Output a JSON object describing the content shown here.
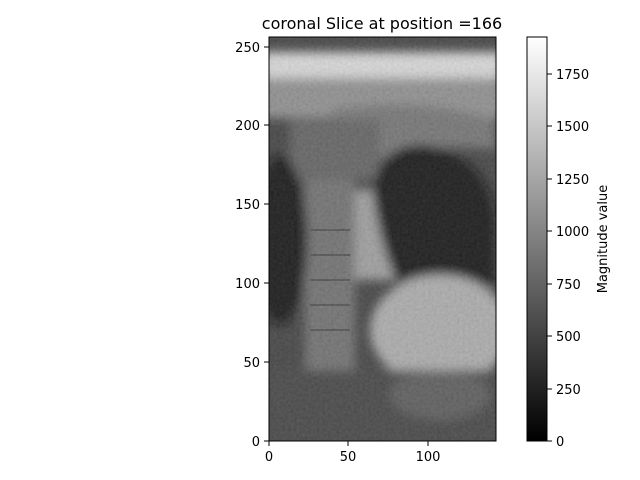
{
  "title": "coronal Slice at position =166",
  "image_axes": {
    "x_ticks": [
      "0",
      "50",
      "100"
    ],
    "y_ticks": [
      "0",
      "50",
      "100",
      "150",
      "200",
      "250"
    ],
    "x_range": [
      0,
      143
    ],
    "y_range": [
      0,
      256
    ]
  },
  "colorbar": {
    "label": "Magnitude value",
    "ticks": [
      "0",
      "250",
      "500",
      "750",
      "1000",
      "1250",
      "1500",
      "1750"
    ],
    "range": [
      0,
      1930
    ],
    "colormap": "gray"
  }
}
